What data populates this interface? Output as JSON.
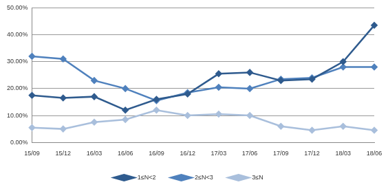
{
  "chart_data": {
    "type": "line",
    "categories": [
      "15/09",
      "15/12",
      "16/03",
      "16/06",
      "16/09",
      "16/12",
      "17/03",
      "17/06",
      "17/09",
      "17/12",
      "18/03",
      "18/06"
    ],
    "series": [
      {
        "name": "1≤N<2",
        "color": "#2f5b8e",
        "marker": "diamond",
        "values": [
          17.5,
          16.5,
          17,
          12,
          16,
          18,
          25.5,
          26,
          23,
          23.5,
          30,
          43.5
        ]
      },
      {
        "name": "2≤N<3",
        "color": "#4f81bd",
        "marker": "diamond",
        "values": [
          32,
          31,
          23,
          20,
          15.5,
          18.5,
          20.5,
          20,
          23.5,
          24,
          28,
          28
        ]
      },
      {
        "name": "3≤N",
        "color": "#a9bfdc",
        "marker": "diamond",
        "values": [
          5.5,
          5,
          7.5,
          8.5,
          12,
          10,
          10.5,
          10,
          6,
          4.5,
          6,
          4.5
        ]
      }
    ],
    "ylim": [
      0,
      50
    ],
    "yticks": [
      {
        "value": 0,
        "label": "0.00%"
      },
      {
        "value": 10,
        "label": "10.00%"
      },
      {
        "value": 20,
        "label": "20.00%"
      },
      {
        "value": 30,
        "label": "30.00%"
      },
      {
        "value": 40,
        "label": "40.00%"
      },
      {
        "value": 50,
        "label": "50.00%"
      }
    ],
    "grid": true,
    "legend": "bottom"
  }
}
